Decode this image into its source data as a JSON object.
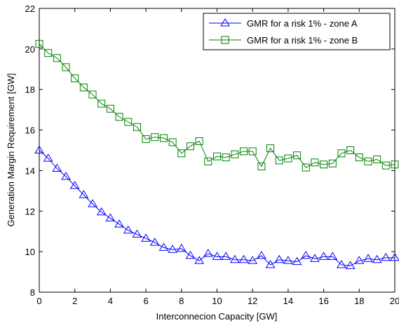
{
  "chart_data": {
    "type": "line",
    "title": "",
    "xlabel": "Interconnecion Capacity [GW]",
    "ylabel": "Generation Margin Requirement [GW]",
    "xlim": [
      0,
      20
    ],
    "ylim": [
      8,
      22
    ],
    "xticks": [
      0,
      2,
      4,
      6,
      8,
      10,
      12,
      14,
      16,
      18,
      20
    ],
    "yticks": [
      8,
      10,
      12,
      14,
      16,
      18,
      20,
      22
    ],
    "xtick_labels": [
      "0",
      "2",
      "4",
      "6",
      "8",
      "10",
      "12",
      "14",
      "16",
      "18",
      "20"
    ],
    "ytick_labels": [
      "8",
      "10",
      "12",
      "14",
      "16",
      "18",
      "20",
      "22"
    ],
    "grid": false,
    "legend_position": "top-right",
    "x": [
      0,
      0.5,
      1,
      1.5,
      2,
      2.5,
      3,
      3.5,
      4,
      4.5,
      5,
      5.5,
      6,
      6.5,
      7,
      7.5,
      8,
      8.5,
      9,
      9.5,
      10,
      10.5,
      11,
      11.5,
      12,
      12.5,
      13,
      13.5,
      14,
      14.5,
      15,
      15.5,
      16,
      16.5,
      17,
      17.5,
      18,
      18.5,
      19,
      19.5,
      20
    ],
    "series": [
      {
        "name": "GMR for a risk 1% - zone A",
        "color": "#0000ff",
        "marker": "triangle",
        "values": [
          15.0,
          14.6,
          14.1,
          13.7,
          13.25,
          12.8,
          12.35,
          11.95,
          11.65,
          11.35,
          11.05,
          10.85,
          10.65,
          10.45,
          10.2,
          10.1,
          10.15,
          9.8,
          9.55,
          9.9,
          9.75,
          9.75,
          9.6,
          9.6,
          9.55,
          9.8,
          9.35,
          9.6,
          9.55,
          9.5,
          9.8,
          9.65,
          9.75,
          9.75,
          9.35,
          9.3,
          9.55,
          9.65,
          9.6,
          9.7,
          9.7
        ]
      },
      {
        "name": "GMR for a risk 1% - zone B",
        "color": "#008000",
        "marker": "square",
        "values": [
          20.25,
          19.8,
          19.55,
          19.1,
          18.55,
          18.1,
          17.75,
          17.3,
          17.05,
          16.65,
          16.4,
          16.15,
          15.55,
          15.65,
          15.6,
          15.4,
          14.85,
          15.2,
          15.45,
          14.45,
          14.7,
          14.65,
          14.8,
          14.95,
          14.95,
          14.2,
          15.1,
          14.5,
          14.6,
          14.75,
          14.15,
          14.4,
          14.3,
          14.35,
          14.85,
          15.0,
          14.65,
          14.45,
          14.55,
          14.25,
          14.3
        ]
      }
    ]
  }
}
